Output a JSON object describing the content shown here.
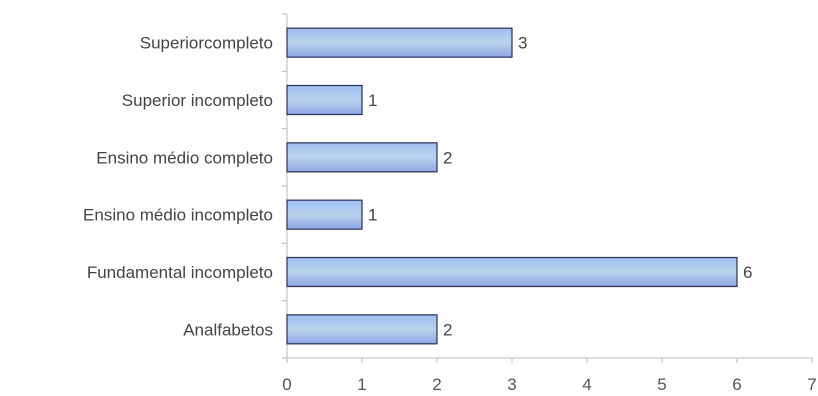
{
  "chart_data": {
    "type": "bar",
    "orientation": "horizontal",
    "title": "",
    "xlabel": "",
    "ylabel": "",
    "categories": [
      "Superiorcompleto",
      "Superior incompleto",
      "Ensino médio completo",
      "Ensino médio incompleto",
      "Fundamental incompleto",
      "Analfabetos"
    ],
    "values": [
      3,
      1,
      2,
      1,
      6,
      2
    ],
    "data_labels": [
      "3",
      "1",
      "2",
      "1",
      "6",
      "2"
    ],
    "xlim": [
      0,
      7
    ],
    "xticks": [
      "0",
      "1",
      "2",
      "3",
      "4",
      "5",
      "6",
      "7"
    ],
    "grid": false,
    "legend": "none",
    "colors": {
      "bar_fill_light": "#b9d3ee",
      "bar_fill_mid": "#8fb0e6",
      "bar_fill_dark": "#7f96df",
      "bar_outline": "#2a2f55",
      "axis": "#b8b8b8",
      "text": "#444444"
    }
  }
}
